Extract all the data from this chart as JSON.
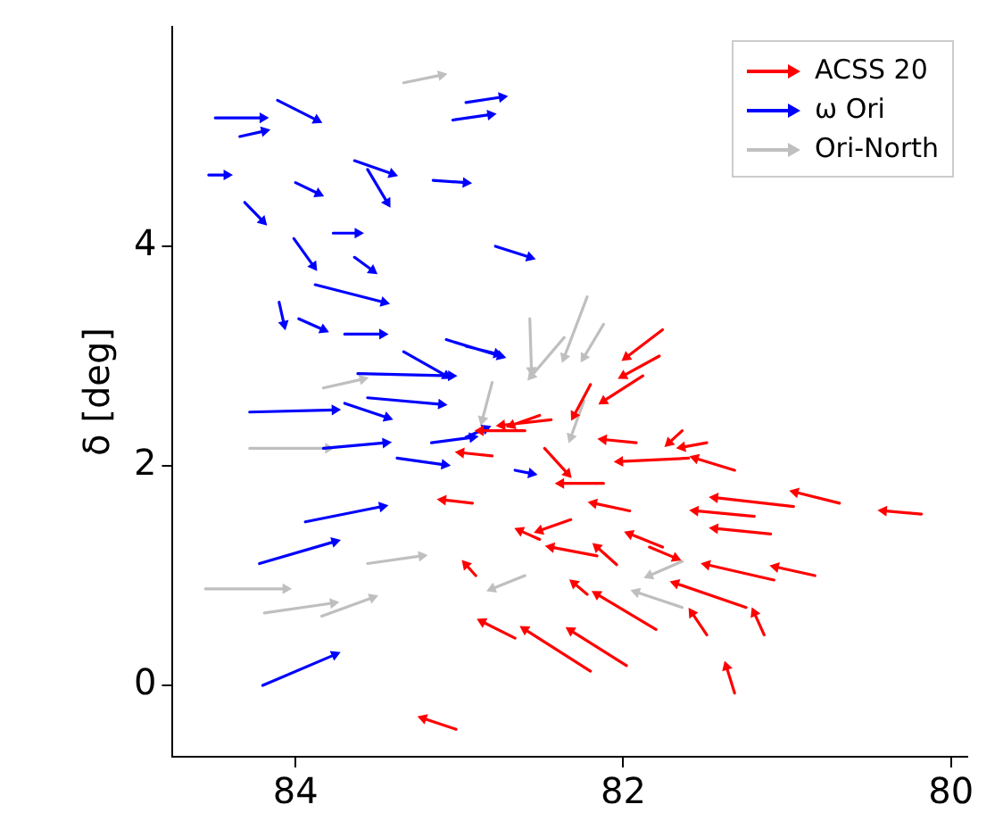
{
  "chart_data": {
    "type": "line",
    "ylabel": "δ [deg]",
    "xlim": [
      84.75,
      79.9
    ],
    "ylim": [
      -0.65,
      6.0
    ],
    "xticks": [
      84,
      82,
      80
    ],
    "yticks": [
      0,
      2,
      4
    ],
    "grid": false,
    "legend": "top right",
    "marker": "triangle",
    "line_style": "solid",
    "series": [
      {
        "name": "ACSS 20",
        "color": "#ff0000",
        "x": [
          80.18,
          80.41,
          null,
          80.68,
          80.95,
          null,
          81.76,
          81.98,
          null,
          81.78,
          82.0,
          null,
          81.88,
          82.12,
          null,
          81.6,
          82.02,
          null,
          81.32,
          81.56,
          null,
          80.96,
          81.44,
          null,
          81.2,
          81.56,
          null,
          81.1,
          81.44,
          null,
          80.83,
          81.07,
          null,
          81.08,
          81.49,
          null,
          81.25,
          81.68,
          null,
          82.2,
          82.6,
          null,
          81.98,
          82.32,
          null,
          82.66,
          82.86,
          null,
          81.32,
          81.37,
          null,
          81.14,
          81.2,
          null,
          81.49,
          81.58,
          null,
          81.8,
          82.16,
          null,
          81.76,
          81.96,
          null,
          82.04,
          82.16,
          null,
          82.16,
          82.44,
          null,
          81.96,
          82.18,
          null,
          82.12,
          82.38,
          null,
          82.32,
          82.51,
          null,
          82.44,
          82.74,
          null,
          81.92,
          82.12,
          null,
          82.2,
          82.3,
          null,
          82.48,
          82.34,
          null,
          81.49,
          81.64,
          null,
          81.64,
          81.72,
          null,
          81.84,
          81.68,
          null,
          82.51,
          82.63,
          null,
          82.22,
          82.3,
          null,
          83.02,
          83.22,
          null,
          82.92,
          83.1,
          null,
          82.9,
          82.96,
          null,
          82.6,
          82.87,
          null,
          82.51,
          82.68,
          null,
          82.8,
          82.99
        ],
        "values": [
          1.56,
          1.59,
          null,
          1.66,
          1.76,
          null,
          3.24,
          2.99,
          null,
          3.0,
          2.82,
          null,
          2.82,
          2.59,
          null,
          2.07,
          2.04,
          null,
          1.96,
          2.07,
          null,
          1.63,
          1.71,
          null,
          1.54,
          1.59,
          null,
          1.38,
          1.43,
          null,
          1.0,
          1.08,
          null,
          0.96,
          1.1,
          null,
          0.71,
          0.93,
          null,
          0.13,
          0.51,
          null,
          0.18,
          0.5,
          null,
          0.43,
          0.58,
          null,
          -0.07,
          0.17,
          null,
          0.46,
          0.66,
          null,
          0.46,
          0.66,
          null,
          0.51,
          0.83,
          null,
          1.26,
          1.38,
          null,
          1.1,
          1.26,
          null,
          1.18,
          1.26,
          null,
          1.59,
          1.66,
          null,
          1.84,
          1.84,
          null,
          1.51,
          1.41,
          null,
          2.42,
          2.37,
          null,
          2.21,
          2.24,
          null,
          2.74,
          2.46,
          null,
          2.16,
          1.93,
          null,
          2.21,
          2.17,
          null,
          2.32,
          2.21,
          null,
          1.26,
          1.16,
          null,
          1.33,
          1.41,
          null,
          0.83,
          0.93,
          null,
          -0.4,
          -0.3,
          null,
          1.66,
          1.69,
          null,
          1.0,
          1.1,
          null,
          2.32,
          2.32,
          null,
          2.46,
          2.37,
          null,
          2.09,
          2.12
        ]
      },
      {
        "name": "ω Ori",
        "color": "#0000ff",
        "x": [
          84.49,
          84.2,
          null,
          84.11,
          83.87,
          null,
          84.34,
          84.19,
          null,
          83.04,
          82.81,
          null,
          82.96,
          82.74,
          null,
          84.53,
          84.42,
          null,
          84.0,
          83.86,
          null,
          83.16,
          82.96,
          null,
          83.64,
          83.41,
          null,
          83.56,
          83.44,
          null,
          84.31,
          84.2,
          null,
          83.77,
          83.62,
          null,
          84.01,
          83.89,
          null,
          83.64,
          83.53,
          null,
          83.88,
          83.46,
          null,
          83.98,
          83.83,
          null,
          83.7,
          83.47,
          null,
          83.08,
          82.75,
          null,
          82.78,
          82.57,
          null,
          84.1,
          84.07,
          null,
          83.34,
          83.08,
          null,
          84.28,
          83.76,
          null,
          83.83,
          83.45,
          null,
          83.38,
          83.09,
          null,
          83.94,
          83.47,
          null,
          84.22,
          83.76,
          null,
          84.2,
          83.76,
          null,
          83.7,
          83.44,
          null,
          83.56,
          83.11,
          null,
          83.17,
          82.92,
          null,
          83.62,
          83.05,
          null,
          82.96,
          82.77,
          null,
          82.66,
          82.56,
          null,
          82.96,
          82.84
        ],
        "values": [
          5.17,
          5.17,
          null,
          5.33,
          5.15,
          null,
          5.0,
          5.05,
          null,
          5.15,
          5.2,
          null,
          5.31,
          5.36,
          null,
          4.65,
          4.65,
          null,
          4.58,
          4.48,
          null,
          4.6,
          4.58,
          null,
          4.78,
          4.66,
          null,
          4.7,
          4.4,
          null,
          4.4,
          4.23,
          null,
          4.12,
          4.12,
          null,
          4.07,
          3.82,
          null,
          3.9,
          3.78,
          null,
          3.65,
          3.49,
          null,
          3.34,
          3.24,
          null,
          3.2,
          3.2,
          null,
          3.15,
          3.0,
          null,
          4.0,
          3.9,
          null,
          3.49,
          3.29,
          null,
          3.04,
          2.82,
          null,
          2.49,
          2.51,
          null,
          2.16,
          2.21,
          null,
          2.07,
          2.01,
          null,
          1.49,
          1.63,
          null,
          1.11,
          1.31,
          null,
          0.0,
          0.28,
          null,
          2.57,
          2.44,
          null,
          2.62,
          2.56,
          null,
          2.21,
          2.26,
          null,
          2.84,
          2.82,
          null,
          3.09,
          3.02,
          null,
          1.96,
          1.93,
          null,
          2.26,
          2.34
        ]
      },
      {
        "name": "Ori-North",
        "color": "#bfbfbf",
        "x": [
          84.55,
          84.06,
          null,
          84.19,
          83.77,
          null,
          83.84,
          83.53,
          null,
          83.56,
          83.23,
          null,
          84.28,
          83.8,
          null,
          83.83,
          83.59,
          null,
          83.34,
          83.11,
          null,
          82.22,
          82.36,
          null,
          82.57,
          82.56,
          null,
          82.12,
          82.24,
          null,
          82.36,
          82.56,
          null,
          82.8,
          82.86,
          null,
          81.64,
          81.92,
          null,
          81.64,
          81.84,
          null,
          82.6,
          82.8,
          null,
          82.24,
          82.32
        ],
        "values": [
          0.88,
          0.88,
          null,
          0.66,
          0.75,
          null,
          0.63,
          0.8,
          null,
          1.11,
          1.18,
          null,
          2.16,
          2.16,
          null,
          2.71,
          2.79,
          null,
          5.49,
          5.56,
          null,
          3.54,
          2.99,
          null,
          3.34,
          2.87,
          null,
          3.29,
          2.99,
          null,
          3.17,
          2.82,
          null,
          2.76,
          2.42,
          null,
          0.71,
          0.85,
          null,
          1.13,
          1.0,
          null,
          1.0,
          0.88,
          null,
          2.59,
          2.26
        ]
      }
    ]
  }
}
